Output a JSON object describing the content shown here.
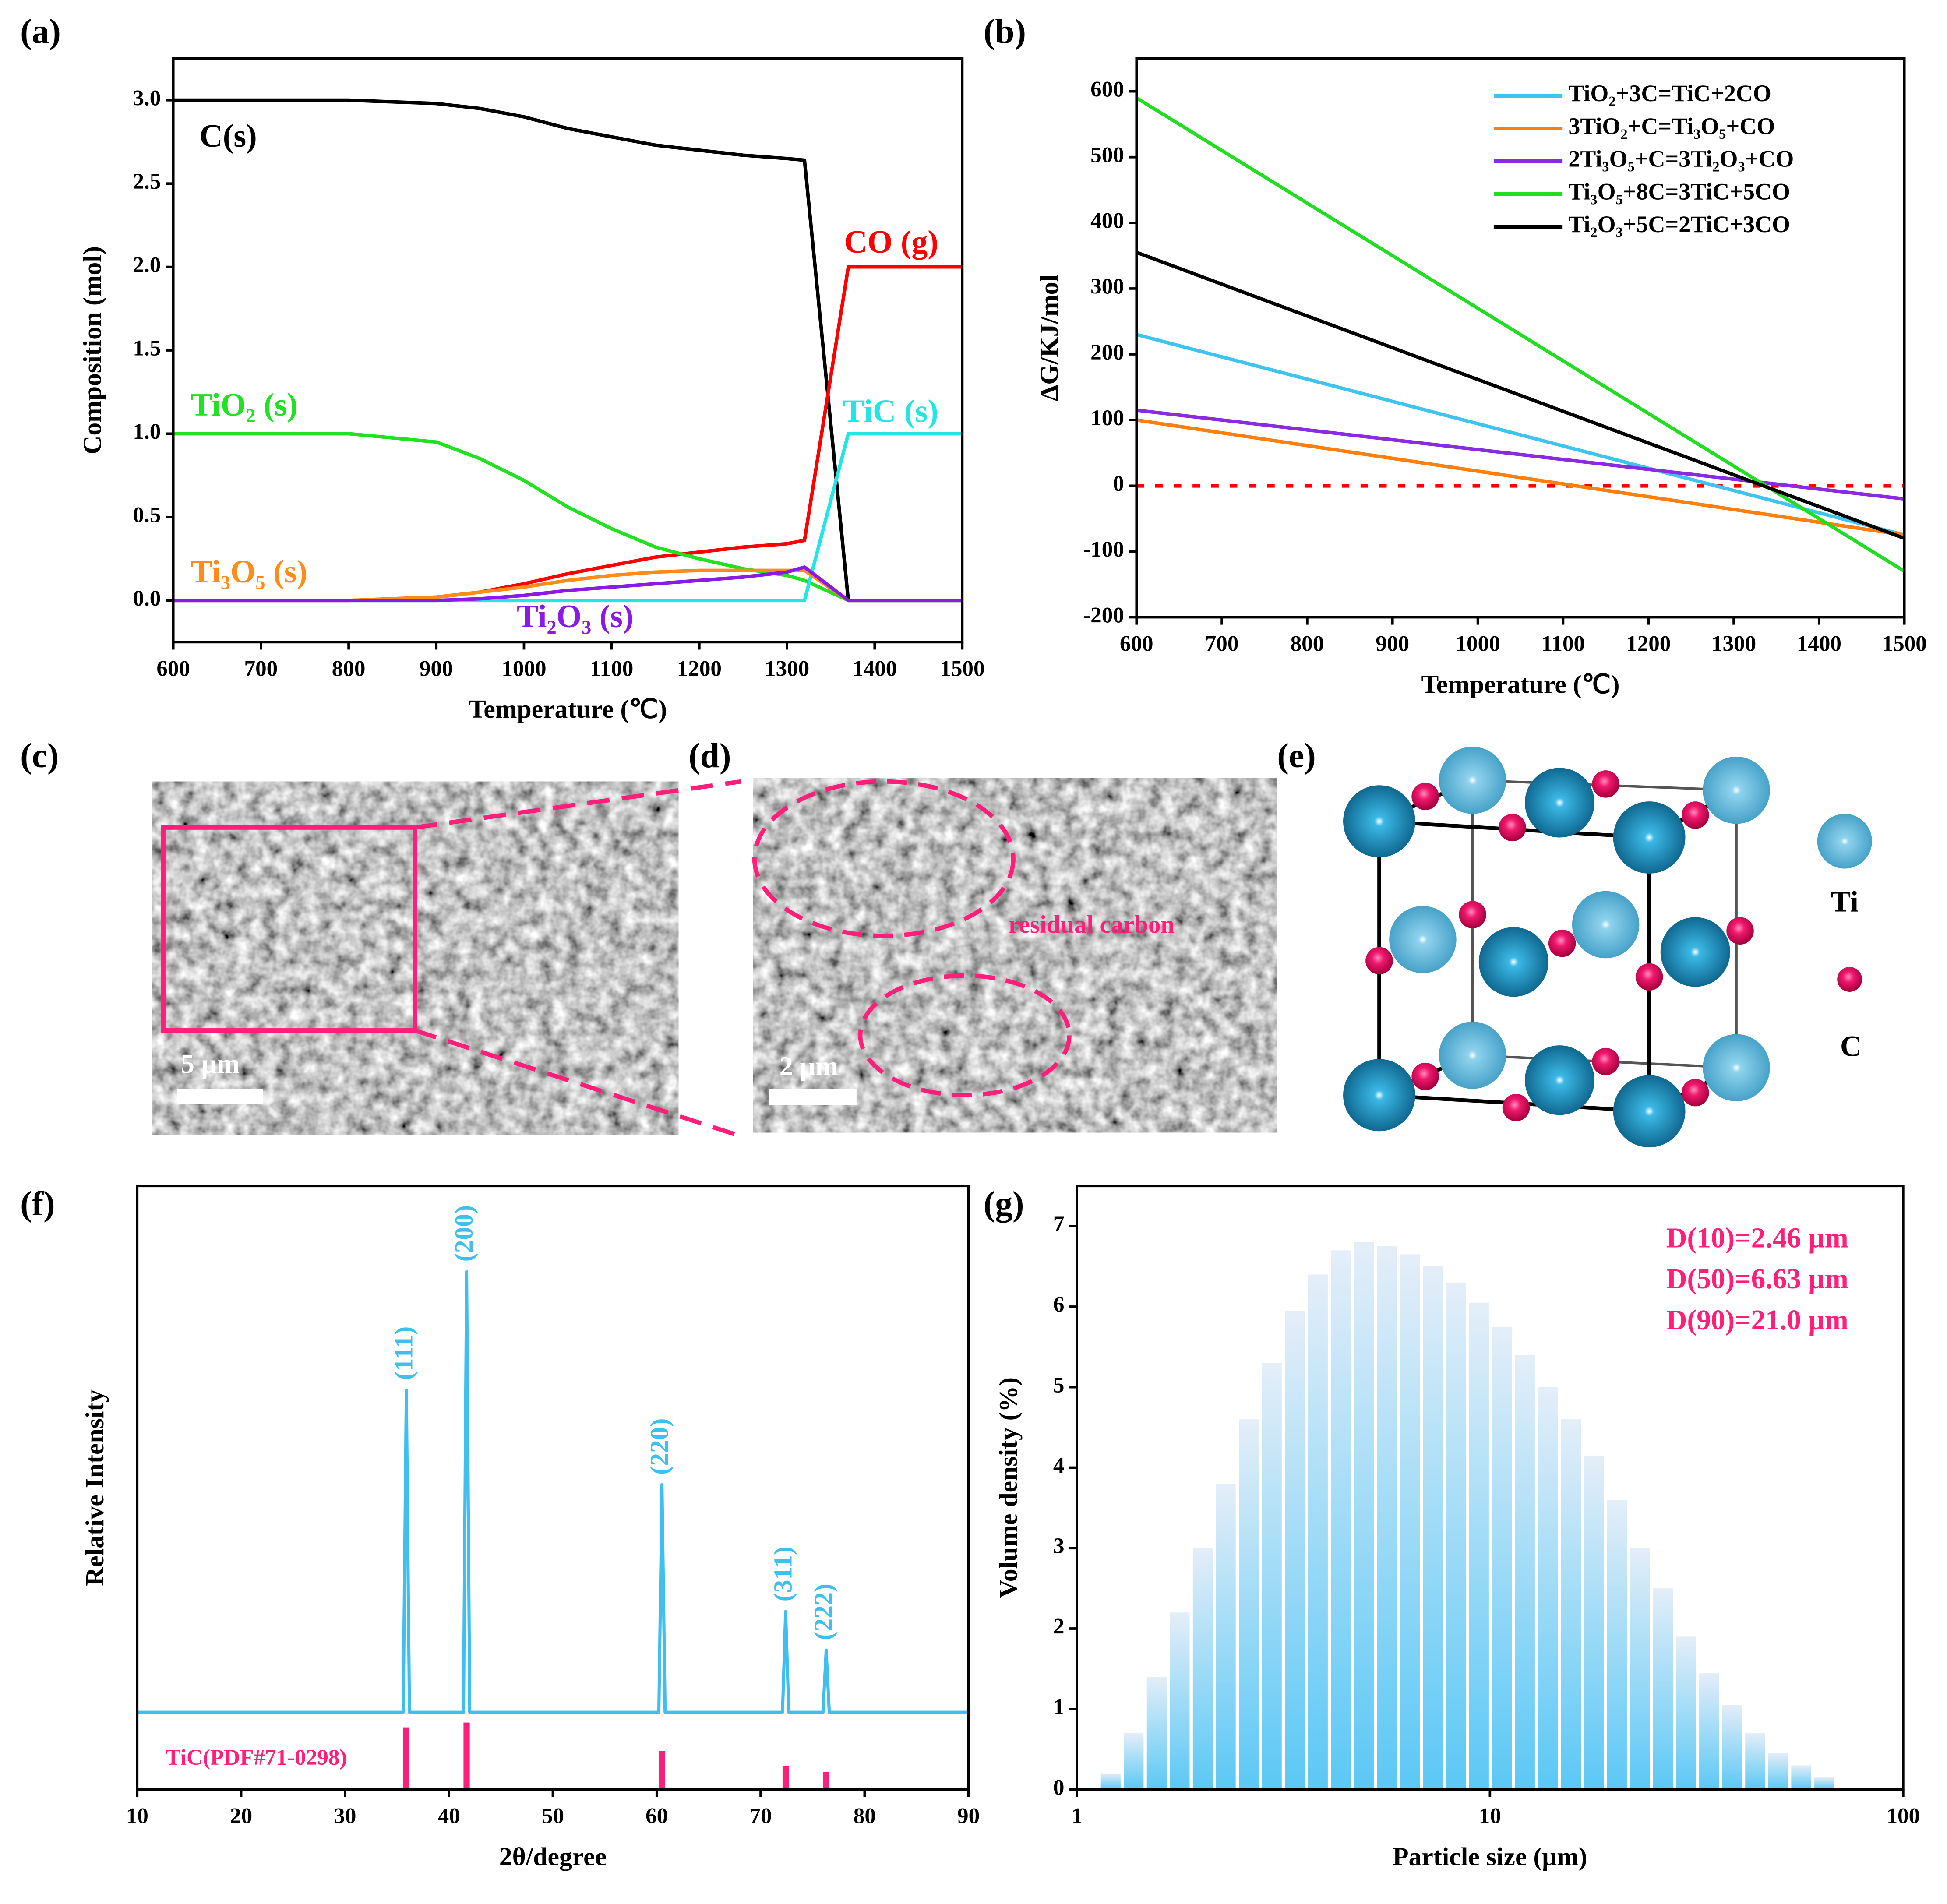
{
  "chart_data": [
    {
      "type": "line",
      "title": "(a)",
      "xlabel": "Temperature (℃)",
      "ylabel": "Composition (mol)",
      "xlim": [
        600,
        1500
      ],
      "xticks": [
        600,
        700,
        800,
        900,
        1000,
        1100,
        1200,
        1300,
        1400,
        1500
      ],
      "ylim": [
        -0.25,
        3.25
      ],
      "yticks": [
        {
          "value": 0,
          "label": "0.0"
        },
        0.5,
        {
          "value": 1,
          "label": "1.0"
        },
        1.5,
        {
          "value": 2,
          "label": "2.0"
        },
        2.5,
        {
          "value": 3,
          "label": "3.0"
        }
      ],
      "x": [
        600,
        700,
        800,
        900,
        950,
        1000,
        1050,
        1100,
        1150,
        1200,
        1250,
        1300,
        1320,
        1370,
        1400,
        1500
      ],
      "series": [
        {
          "name": "C(s)",
          "color": "#000000",
          "values": [
            3.0,
            3.0,
            3.0,
            2.98,
            2.95,
            2.9,
            2.83,
            2.78,
            2.73,
            2.7,
            2.67,
            2.65,
            2.64,
            0,
            0,
            0
          ]
        },
        {
          "name": "CO (g)",
          "color": "#ff0000",
          "values": [
            0,
            0,
            0,
            0.02,
            0.05,
            0.1,
            0.16,
            0.21,
            0.26,
            0.29,
            0.32,
            0.34,
            0.36,
            2.0,
            2.0,
            2.0
          ]
        },
        {
          "name": "TiO₂ (s)",
          "color": "#22e022",
          "values": [
            1.0,
            1.0,
            1.0,
            0.95,
            0.85,
            0.72,
            0.56,
            0.43,
            0.32,
            0.25,
            0.19,
            0.15,
            0.12,
            0,
            0,
            0
          ]
        },
        {
          "name": "TiC (s)",
          "color": "#22e5e5",
          "values": [
            0,
            0,
            0,
            0,
            0,
            0,
            0,
            0,
            0,
            0,
            0,
            0,
            0,
            1.0,
            1.0,
            1.0
          ]
        },
        {
          "name": "Ti₃O₅ (s)",
          "color": "#ff8c1a",
          "values": [
            0,
            0,
            0,
            0.02,
            0.05,
            0.08,
            0.12,
            0.15,
            0.17,
            0.18,
            0.18,
            0.18,
            0.18,
            0,
            0,
            0
          ]
        },
        {
          "name": "Ti₂O₃ (s)",
          "color": "#8b1ae6",
          "values": [
            0,
            0,
            0,
            0,
            0.01,
            0.03,
            0.06,
            0.08,
            0.1,
            0.12,
            0.14,
            0.17,
            0.2,
            0,
            0,
            0
          ]
        }
      ]
    },
    {
      "type": "line",
      "title": "(b)",
      "xlabel": "Temperature (℃)",
      "ylabel": "ΔG/KJ/mol",
      "xlim": [
        600,
        1500
      ],
      "xticks": [
        600,
        700,
        800,
        900,
        1000,
        1100,
        1200,
        1300,
        1400,
        1500
      ],
      "ylim": [
        -200,
        650
      ],
      "yticks": [
        -200,
        -100,
        0,
        100,
        200,
        300,
        400,
        500,
        600
      ],
      "legend": "upper right",
      "reference_line": {
        "value": 0,
        "color": "#ff0000"
      },
      "series": [
        {
          "name": "TiO₂+3C=TiC+2CO",
          "color": "#3fc4f0",
          "x": [
            600,
            1500
          ],
          "values": [
            230,
            -75
          ]
        },
        {
          "name": "3TiO₂+C=Ti₃O₅+CO",
          "color": "#ff7f0e",
          "x": [
            600,
            1500
          ],
          "values": [
            100,
            -75
          ]
        },
        {
          "name": "2Ti₃O₅+C=3Ti₂O₃+CO",
          "color": "#8a2be2",
          "x": [
            600,
            1500
          ],
          "values": [
            115,
            -20
          ]
        },
        {
          "name": "Ti₃O₅+8C=3TiC+5CO",
          "color": "#22dd22",
          "x": [
            600,
            1500
          ],
          "values": [
            590,
            -130
          ]
        },
        {
          "name": "Ti₂O₃+5C=2TiC+3CO",
          "color": "#000000",
          "x": [
            600,
            1500
          ],
          "values": [
            355,
            -80
          ]
        }
      ]
    },
    {
      "type": "line",
      "title": "(f)",
      "xlabel": "2θ/degree",
      "ylabel": "Relative Intensity",
      "xlim": [
        10,
        90
      ],
      "xticks": [
        10,
        20,
        30,
        40,
        50,
        60,
        70,
        80,
        90
      ],
      "ylim": [
        0,
        100
      ],
      "series": [
        {
          "color": "#3fbff0",
          "x": [
            10,
            35.6,
            35.9,
            36.2,
            41.4,
            41.7,
            42.0,
            60.2,
            60.5,
            60.8,
            72.1,
            72.4,
            72.7,
            76.0,
            76.3,
            76.6,
            90
          ],
          "values": [
            12.8,
            12.8,
            66.2,
            12.8,
            12.8,
            85.8,
            12.8,
            12.8,
            50.5,
            12.8,
            12.8,
            29.5,
            12.8,
            12.8,
            23.1,
            12.8,
            12.8
          ]
        }
      ],
      "reference": {
        "name": "TiC(PDF#71-0298)",
        "color": "#ff1f7a",
        "x": [
          35.9,
          41.7,
          60.5,
          72.4,
          76.3
        ],
        "values": [
          10.3,
          11.1,
          6.4,
          3.9,
          2.9
        ]
      },
      "peak_labels": [
        "(111)",
        "(200)",
        "(220)",
        "(311)",
        "(222)"
      ]
    },
    {
      "type": "histogram",
      "title": "(g)",
      "xlabel": "Particle size (μm)",
      "ylabel": "Volume density (%)",
      "xscale": "log",
      "xlim": [
        1,
        100
      ],
      "xticks": [
        1,
        10,
        100
      ],
      "ylim": [
        0,
        7.5
      ],
      "yticks": [
        0,
        1,
        2,
        3,
        4,
        5,
        6,
        7
      ],
      "color": "#5bc8f5",
      "bins": [
        1.133,
        1.288,
        1.464,
        1.665,
        1.892,
        2.151,
        2.446,
        2.781,
        3.161,
        3.594,
        4.086,
        4.645,
        5.28,
        6.003,
        6.823,
        7.757,
        8.819,
        10.03,
        11.4,
        12.96,
        14.73,
        16.75,
        19.04,
        21.64,
        24.6,
        27.97,
        31.8,
        36.15,
        41.1,
        46.72,
        53.12,
        60.38,
        68.64
      ],
      "values": [
        0.2,
        0.7,
        1.4,
        2.2,
        3.0,
        3.8,
        4.6,
        5.3,
        5.95,
        6.4,
        6.7,
        6.8,
        6.75,
        6.65,
        6.5,
        6.3,
        6.05,
        5.75,
        5.4,
        5.0,
        4.6,
        4.15,
        3.6,
        3.0,
        2.5,
        1.9,
        1.45,
        1.05,
        0.7,
        0.45,
        0.3,
        0.15
      ],
      "annotations": [
        "D(10)=2.46 μm",
        "D(50)=6.63 μm",
        "D(90)=21.0 μm"
      ]
    }
  ],
  "images": [
    {
      "label": "(c)",
      "scale_bar": "5 μm"
    },
    {
      "label": "(d)",
      "scale_bar": "2 μm",
      "annotation": "residual carbon"
    },
    {
      "label": "(e)",
      "legend": [
        "Ti",
        "C"
      ]
    }
  ]
}
